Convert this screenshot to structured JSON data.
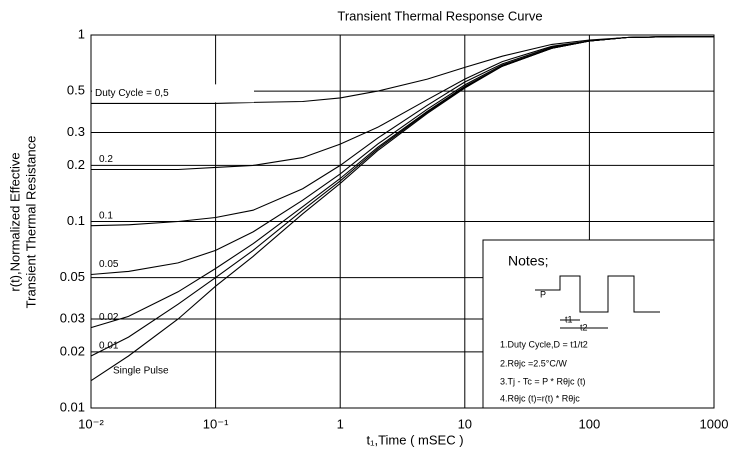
{
  "chart_data": {
    "type": "line",
    "title": "Transient Thermal Response Curve",
    "x_label": "t₁,Time ( mSEC )",
    "y_label": [
      "r(t),Normalized Effective",
      "Transient Thermal Resistance"
    ],
    "x": [
      0.01,
      0.02,
      0.05,
      0.1,
      0.2,
      0.5,
      1,
      2,
      5,
      10,
      20,
      50,
      100,
      200,
      500,
      1000
    ],
    "series": [
      {
        "name": "Duty Cycle = 0,5",
        "color": "#000000",
        "values": [
          0.43,
          0.43,
          0.43,
          0.43,
          0.435,
          0.44,
          0.46,
          0.5,
          0.58,
          0.67,
          0.77,
          0.89,
          0.94,
          0.97,
          0.98,
          0.98
        ]
      },
      {
        "name": "0.2",
        "color": "#000000",
        "values": [
          0.19,
          0.19,
          0.19,
          0.195,
          0.2,
          0.22,
          0.26,
          0.32,
          0.45,
          0.58,
          0.72,
          0.87,
          0.93,
          0.97,
          0.98,
          0.98
        ]
      },
      {
        "name": "0.1",
        "color": "#000000",
        "values": [
          0.095,
          0.096,
          0.1,
          0.105,
          0.115,
          0.15,
          0.2,
          0.28,
          0.42,
          0.56,
          0.7,
          0.86,
          0.93,
          0.97,
          0.98,
          0.98
        ]
      },
      {
        "name": "0.05",
        "color": "#000000",
        "values": [
          0.052,
          0.054,
          0.06,
          0.07,
          0.088,
          0.13,
          0.18,
          0.26,
          0.4,
          0.54,
          0.69,
          0.85,
          0.93,
          0.97,
          0.98,
          0.98
        ]
      },
      {
        "name": "0.02",
        "color": "#000000",
        "values": [
          0.027,
          0.031,
          0.042,
          0.056,
          0.076,
          0.12,
          0.17,
          0.25,
          0.39,
          0.53,
          0.68,
          0.85,
          0.93,
          0.97,
          0.98,
          0.98
        ]
      },
      {
        "name": "0.01",
        "color": "#000000",
        "values": [
          0.019,
          0.024,
          0.036,
          0.05,
          0.07,
          0.115,
          0.165,
          0.245,
          0.385,
          0.525,
          0.68,
          0.85,
          0.93,
          0.97,
          0.98,
          0.98
        ]
      },
      {
        "name": "Single Pulse",
        "color": "#000000",
        "values": [
          0.014,
          0.019,
          0.03,
          0.045,
          0.065,
          0.11,
          0.16,
          0.24,
          0.38,
          0.52,
          0.68,
          0.85,
          0.93,
          0.97,
          0.98,
          0.98
        ]
      }
    ],
    "xlim": [
      0.01,
      1000
    ],
    "ylim": [
      0.01,
      1
    ],
    "xticks": [
      {
        "value": 0.01,
        "label": "10⁻²"
      },
      {
        "value": 0.1,
        "label": "10⁻¹"
      },
      1,
      10,
      100,
      1000
    ],
    "yticks": [
      0.01,
      0.02,
      0.03,
      0.05,
      0.1,
      0.2,
      0.3,
      0.5,
      1
    ],
    "xscale": "log",
    "yscale": "log",
    "grid": true,
    "notes": {
      "title": "Notes;",
      "wave_labels": [
        "P",
        "t1",
        "t2"
      ],
      "items": [
        "1.Duty Cycle,D = t1/t2",
        "2.Rθjc =2.5°C/W",
        "3.Tj - Tc = P * Rθjc (t)",
        "4.Rθjc (t)=r(t) * Rθjc"
      ]
    }
  }
}
